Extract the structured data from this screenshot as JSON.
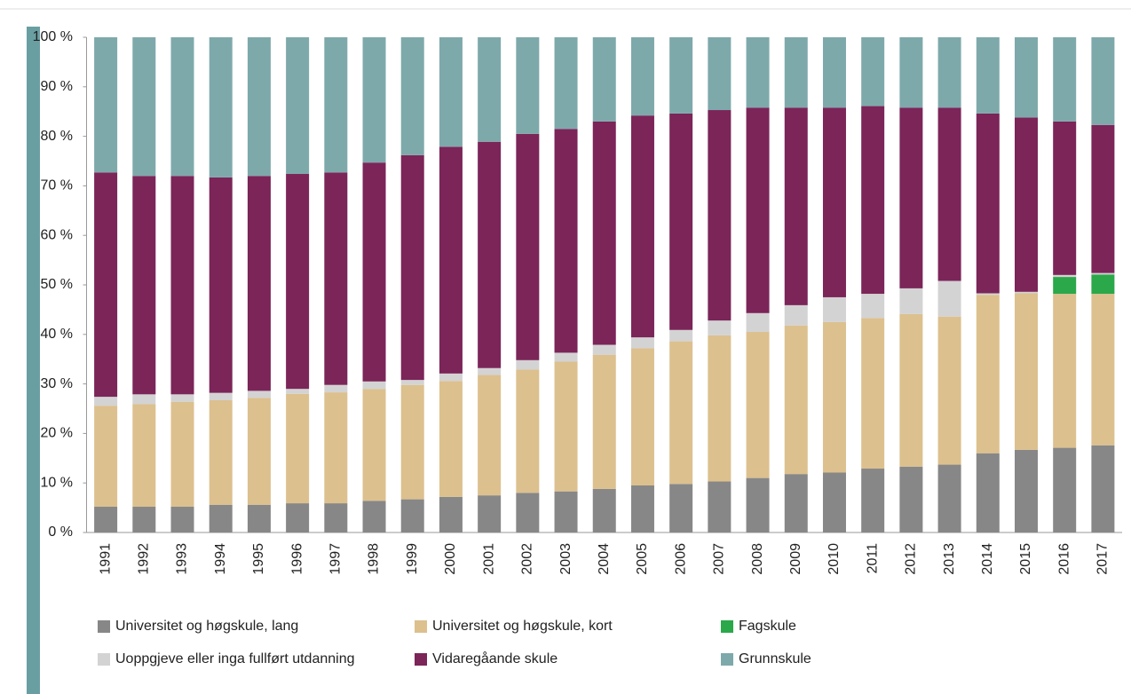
{
  "chart_data": {
    "type": "stacked_bar",
    "categories": [
      "1991",
      "1992",
      "1993",
      "1994",
      "1995",
      "1996",
      "1997",
      "1998",
      "1999",
      "2000",
      "2001",
      "2002",
      "2003",
      "2004",
      "2005",
      "2006",
      "2007",
      "2008",
      "2009",
      "2010",
      "2011",
      "2012",
      "2013",
      "2014",
      "2015",
      "2016",
      "2017"
    ],
    "series": [
      {
        "name": "Universitet og høgskule, lang",
        "color": "#878787",
        "values": [
          5.2,
          5.2,
          5.2,
          5.6,
          5.6,
          5.9,
          5.9,
          6.4,
          6.7,
          7.2,
          7.5,
          8.0,
          8.3,
          8.8,
          9.5,
          9.8,
          10.3,
          11.0,
          11.8,
          12.1,
          12.9,
          13.3,
          13.7,
          16.0,
          16.7,
          17.1,
          17.6
        ]
      },
      {
        "name": "Universitet og høgskule, kort",
        "color": "#dcc08e",
        "values": [
          20.4,
          20.7,
          21.2,
          21.1,
          21.6,
          22.1,
          22.4,
          22.6,
          23.1,
          23.4,
          24.3,
          24.9,
          26.2,
          27.1,
          27.7,
          28.8,
          29.5,
          29.5,
          30.0,
          30.4,
          30.4,
          30.8,
          29.9,
          32.0,
          31.6,
          31.1,
          30.6
        ]
      },
      {
        "name": "Fagskule",
        "color": "#2ba84a",
        "values": [
          0,
          0,
          0,
          0,
          0,
          0,
          0,
          0,
          0,
          0,
          0,
          0,
          0,
          0,
          0,
          0,
          0,
          0,
          0,
          0,
          0,
          0,
          0,
          0,
          0,
          3.4,
          3.9
        ]
      },
      {
        "name": "Uoppgjeve eller inga fullført utdanning",
        "color": "#d3d3d3",
        "values": [
          1.8,
          2.0,
          1.5,
          1.5,
          1.4,
          1.0,
          1.5,
          1.5,
          1.0,
          1.5,
          1.4,
          1.9,
          1.8,
          2.0,
          2.2,
          2.3,
          3.0,
          3.8,
          4.1,
          5.0,
          4.9,
          5.2,
          7.2,
          0.3,
          0.3,
          0.4,
          0.3
        ]
      },
      {
        "name": "Vidaregåande skule",
        "color": "#7b2559",
        "values": [
          45.3,
          44.1,
          44.1,
          43.5,
          43.4,
          43.4,
          42.9,
          44.2,
          45.4,
          45.8,
          45.7,
          45.7,
          45.2,
          45.1,
          44.8,
          43.7,
          42.5,
          41.5,
          39.9,
          38.3,
          37.9,
          36.5,
          35.0,
          36.3,
          35.2,
          31.0,
          29.9
        ]
      },
      {
        "name": "Grunnskule",
        "color": "#7ea9ab",
        "values": [
          27.3,
          28.0,
          28.0,
          28.3,
          28.0,
          27.6,
          27.3,
          25.3,
          23.8,
          22.1,
          21.1,
          19.5,
          18.5,
          17.0,
          15.8,
          15.4,
          14.7,
          14.2,
          14.2,
          14.2,
          13.9,
          14.2,
          14.2,
          15.4,
          16.2,
          17.0,
          17.7
        ]
      }
    ],
    "ylim": [
      0,
      100
    ],
    "yticks": [
      {
        "value": 0,
        "label": "0 %"
      },
      {
        "value": 10,
        "label": "10 %"
      },
      {
        "value": 20,
        "label": "20 %"
      },
      {
        "value": 30,
        "label": "30 %"
      },
      {
        "value": 40,
        "label": "40 %"
      },
      {
        "value": 50,
        "label": "50 %"
      },
      {
        "value": 60,
        "label": "60 %"
      },
      {
        "value": 70,
        "label": "70 %"
      },
      {
        "value": 80,
        "label": "80 %"
      },
      {
        "value": 90,
        "label": "90 %"
      },
      {
        "value": 100,
        "label": "100 %"
      }
    ],
    "grid": false
  }
}
